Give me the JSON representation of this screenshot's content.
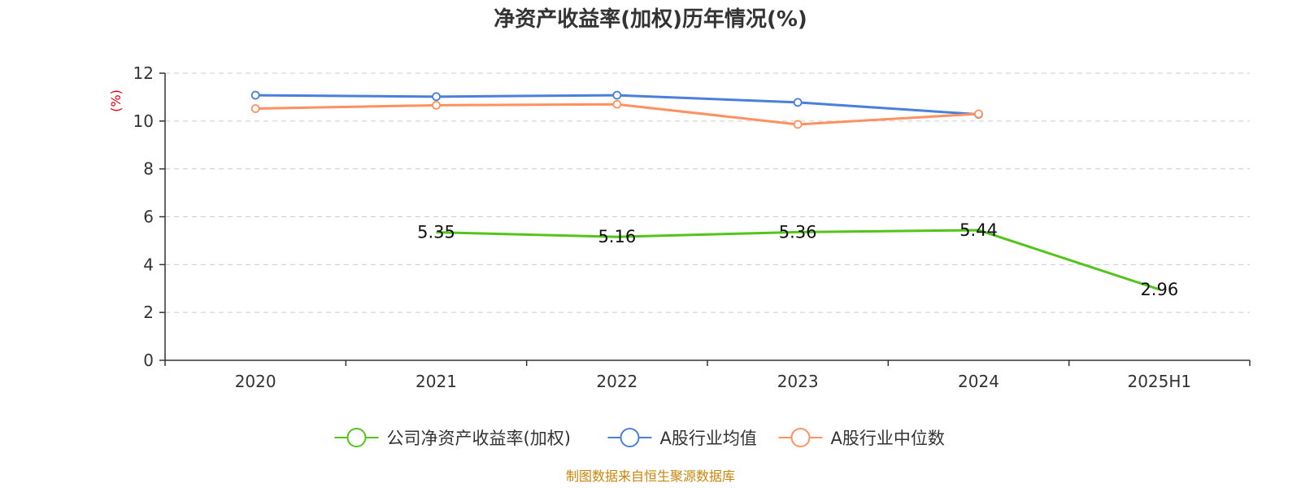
{
  "chart_data": {
    "type": "line",
    "title": "净资产收益率(加权)历年情况(%)",
    "ylabel": "(%)",
    "categories": [
      "2020",
      "2021",
      "2022",
      "2023",
      "2024",
      "2025H1"
    ],
    "ylim": [
      0,
      12
    ],
    "yticks": [
      0,
      2,
      4,
      6,
      8,
      10,
      12
    ],
    "grid": true,
    "legend_position": "bottom",
    "series": [
      {
        "name": "公司净资产收益率(加权)",
        "color": "#52c41a",
        "values": [
          null,
          5.35,
          5.16,
          5.36,
          5.44,
          2.96
        ],
        "labels": [
          null,
          "5.35",
          "5.16",
          "5.36",
          "5.44",
          "2.96"
        ],
        "markers": false
      },
      {
        "name": "A股行业均值",
        "color": "#4a7fdd",
        "values": [
          11.08,
          11.02,
          11.08,
          10.78,
          10.28,
          null
        ],
        "markers": true
      },
      {
        "name": "A股行业中位数",
        "color": "#ff9060",
        "values": [
          10.52,
          10.66,
          10.7,
          9.86,
          10.3,
          null
        ],
        "markers": true
      }
    ]
  },
  "source": "制图数据来自恒生聚源数据库"
}
